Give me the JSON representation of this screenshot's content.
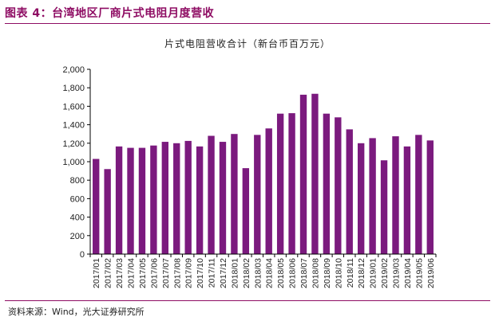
{
  "figure_title": "图表 4：台湾地区厂商片式电阻月度营收",
  "source_note": "资料来源：Wind，光大证券研究所",
  "colors": {
    "bar": "#7b1a7e",
    "accent": "#8e0c63",
    "axis": "#000000"
  },
  "chart_data": {
    "type": "bar",
    "title": "片式电阻营收合计（新台币百万元）",
    "xlabel": "",
    "ylabel": "",
    "ylim": [
      0,
      2000
    ],
    "ytick_step": 200,
    "yticks": [
      "0",
      "200",
      "400",
      "600",
      "800",
      "1,000",
      "1,200",
      "1,400",
      "1,600",
      "1,800",
      "2,000"
    ],
    "grid": false,
    "categories": [
      "2017/01",
      "2017/02",
      "2017/03",
      "2017/04",
      "2017/05",
      "2017/06",
      "2017/07",
      "2017/08",
      "2017/09",
      "2017/10",
      "2017/11",
      "2017/12",
      "2018/01",
      "2018/02",
      "2018/03",
      "2018/04",
      "2018/05",
      "2018/06",
      "2018/07",
      "2018/08",
      "2018/09",
      "2018/10",
      "2018/11",
      "2018/12",
      "2019/01",
      "2019/02",
      "2019/03",
      "2019/04",
      "2019/05",
      "2019/06"
    ],
    "values": [
      1030,
      920,
      1165,
      1150,
      1150,
      1175,
      1215,
      1200,
      1225,
      1165,
      1280,
      1215,
      1300,
      930,
      1290,
      1360,
      1520,
      1525,
      1725,
      1735,
      1520,
      1480,
      1350,
      1200,
      1255,
      1015,
      1275,
      1165,
      1290,
      1230
    ]
  }
}
